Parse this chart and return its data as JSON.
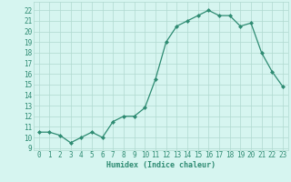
{
  "x": [
    0,
    1,
    2,
    3,
    4,
    5,
    6,
    7,
    8,
    9,
    10,
    11,
    12,
    13,
    14,
    15,
    16,
    17,
    18,
    19,
    20,
    21,
    22,
    23
  ],
  "y": [
    10.5,
    10.5,
    10.2,
    9.5,
    10.0,
    10.5,
    10.0,
    11.5,
    12.0,
    12.0,
    12.8,
    15.5,
    19.0,
    20.5,
    21.0,
    21.5,
    22.0,
    21.5,
    21.5,
    20.5,
    20.8,
    18.0,
    16.2,
    14.8
  ],
  "line_color": "#2e8b72",
  "marker": "D",
  "marker_size": 2.0,
  "bg_color": "#d6f5f0",
  "grid_color": "#b0d9d0",
  "xlabel": "Humidex (Indice chaleur)",
  "yticks": [
    9,
    10,
    11,
    12,
    13,
    14,
    15,
    16,
    17,
    18,
    19,
    20,
    21,
    22
  ],
  "ylim": [
    8.8,
    22.8
  ],
  "xlim": [
    -0.5,
    23.5
  ],
  "xticks": [
    0,
    1,
    2,
    3,
    4,
    5,
    6,
    7,
    8,
    9,
    10,
    11,
    12,
    13,
    14,
    15,
    16,
    17,
    18,
    19,
    20,
    21,
    22,
    23
  ],
  "axis_label_fontsize": 6.0,
  "tick_fontsize": 5.5,
  "linewidth": 0.9
}
